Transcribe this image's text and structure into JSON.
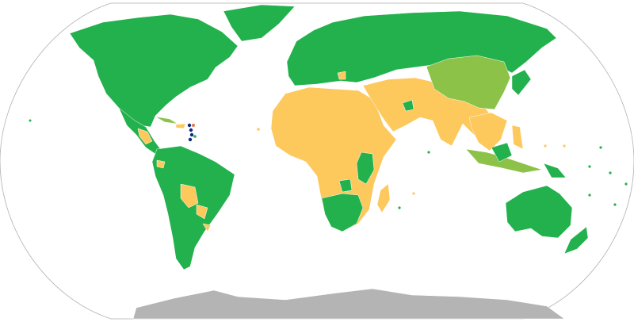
{
  "map": {
    "projection": "Robinson",
    "colors": {
      "category_green": "#22b14c",
      "category_yellow": "#fdc85c",
      "category_light_green": "#8dc249",
      "category_navy": "#0b2a80",
      "category_orange": "#e8774a",
      "no_data_gray": "#b4b4b4",
      "outline": "#b0b0b0",
      "background": "#ffffff"
    }
  }
}
